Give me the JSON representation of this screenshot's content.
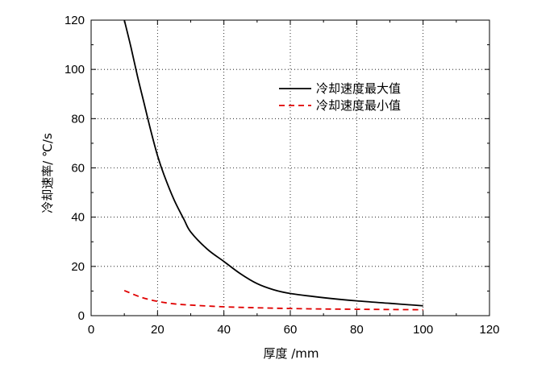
{
  "chart_data": {
    "type": "line",
    "xlabel": "厚度 /mm",
    "ylabel": "冷却速率/ ℃/s",
    "xlim": [
      0,
      120
    ],
    "ylim": [
      0,
      120
    ],
    "xticks": [
      0,
      20,
      40,
      60,
      80,
      100,
      120
    ],
    "yticks": [
      0,
      20,
      40,
      60,
      80,
      100,
      120
    ],
    "grid": true,
    "legend_position": "top-right",
    "series": [
      {
        "name": "冷却速度最大值",
        "color": "#000000",
        "dash": "solid",
        "x": [
          10,
          12,
          14,
          16,
          18,
          20,
          22,
          25,
          28,
          30,
          35,
          40,
          45,
          50,
          55,
          60,
          70,
          80,
          90,
          100
        ],
        "y": [
          120,
          109,
          97,
          86,
          75,
          65,
          57,
          47,
          39,
          34,
          27,
          22,
          17,
          13,
          10.5,
          9,
          7.3,
          6,
          5,
          4
        ]
      },
      {
        "name": "冷却速度最小值",
        "color": "#e00000",
        "dash": "dashed",
        "x": [
          10,
          15,
          20,
          25,
          30,
          40,
          50,
          60,
          70,
          80,
          90,
          100
        ],
        "y": [
          10.2,
          7.5,
          5.8,
          4.8,
          4.3,
          3.6,
          3.2,
          2.9,
          2.7,
          2.6,
          2.5,
          2.4
        ]
      }
    ]
  }
}
